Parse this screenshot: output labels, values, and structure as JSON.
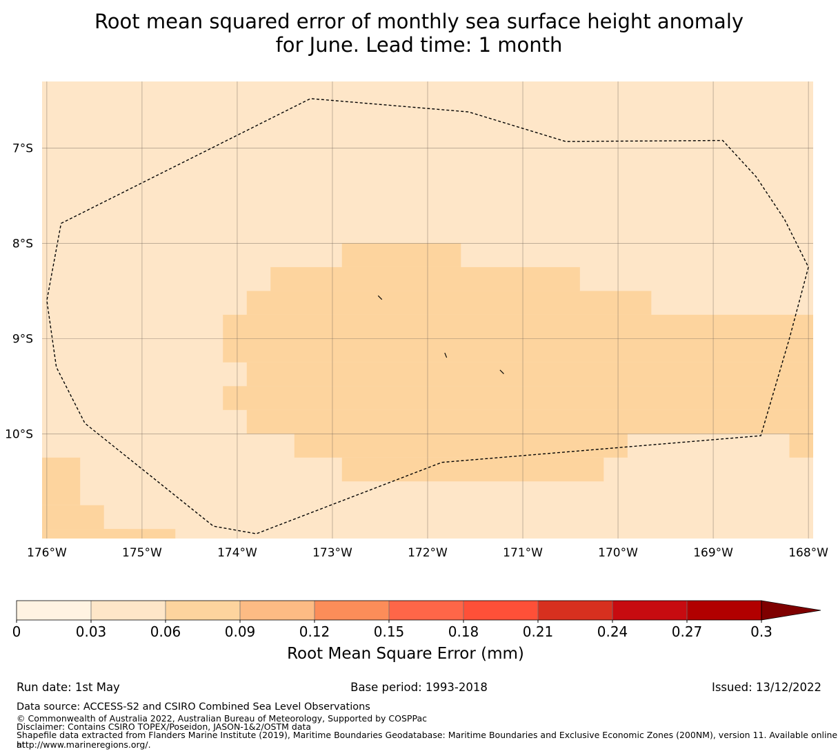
{
  "chart_data": {
    "type": "heatmap",
    "title_line1": "Root mean squared error of monthly sea surface height anomaly",
    "title_line2": "for June. Lead time: 1 month",
    "lon_range": [
      -176.05,
      -167.95
    ],
    "lat_range": [
      -11.1,
      -6.3
    ],
    "x_ticks": [
      -176,
      -175,
      -174,
      -173,
      -172,
      -171,
      -170,
      -169,
      -168
    ],
    "x_tick_labels": [
      "176°W",
      "175°W",
      "174°W",
      "173°W",
      "172°W",
      "171°W",
      "170°W",
      "169°W",
      "168°W"
    ],
    "y_ticks": [
      -7,
      -8,
      -9,
      -10
    ],
    "y_tick_labels": [
      "7°S",
      "8°S",
      "9°S",
      "10°S"
    ],
    "grid": true,
    "background_class_color": "#fee6c8",
    "highlight_class_color": "#fdd49e",
    "highlight_cells": [
      {
        "lon": [
          -172.9,
          -171.65
        ],
        "lat": [
          -8.25,
          -8.0
        ]
      },
      {
        "lon": [
          -173.65,
          -170.4
        ],
        "lat": [
          -8.5,
          -8.25
        ]
      },
      {
        "lon": [
          -173.9,
          -169.65
        ],
        "lat": [
          -8.75,
          -8.5
        ]
      },
      {
        "lon": [
          -174.15,
          -167.95
        ],
        "lat": [
          -9.25,
          -8.75
        ]
      },
      {
        "lon": [
          -173.9,
          -167.95
        ],
        "lat": [
          -9.5,
          -9.25
        ]
      },
      {
        "lon": [
          -174.15,
          -167.95
        ],
        "lat": [
          -9.75,
          -9.5
        ]
      },
      {
        "lon": [
          -173.9,
          -167.95
        ],
        "lat": [
          -10.0,
          -9.75
        ]
      },
      {
        "lon": [
          -173.4,
          -169.9
        ],
        "lat": [
          -10.25,
          -10.0
        ]
      },
      {
        "lon": [
          -168.2,
          -167.95
        ],
        "lat": [
          -10.25,
          -10.0
        ]
      },
      {
        "lon": [
          -172.9,
          -170.15
        ],
        "lat": [
          -10.5,
          -10.25
        ]
      },
      {
        "lon": [
          -176.05,
          -175.65
        ],
        "lat": [
          -10.75,
          -10.25
        ]
      },
      {
        "lon": [
          -176.05,
          -175.4
        ],
        "lat": [
          -11.0,
          -10.75
        ]
      },
      {
        "lon": [
          -176.05,
          -175.15
        ],
        "lat": [
          -11.1,
          -11.0
        ]
      },
      {
        "lon": [
          -176.05,
          -174.65
        ],
        "lat": [
          -11.1,
          -11.0
        ]
      }
    ],
    "eez_boundary": [
      [
        -175.85,
        -7.79
      ],
      [
        -173.23,
        -6.48
      ],
      [
        -171.57,
        -6.62
      ],
      [
        -170.55,
        -6.93
      ],
      [
        -168.9,
        -6.92
      ],
      [
        -168.55,
        -7.3
      ],
      [
        -168.25,
        -7.75
      ],
      [
        -168.0,
        -8.25
      ],
      [
        -168.2,
        -9.0
      ],
      [
        -168.5,
        -10.02
      ],
      [
        -171.85,
        -10.3
      ],
      [
        -173.8,
        -11.05
      ],
      [
        -174.25,
        -10.97
      ],
      [
        -175.6,
        -9.89
      ],
      [
        -175.9,
        -9.3
      ],
      [
        -176.0,
        -8.6
      ],
      [
        -175.85,
        -7.79
      ]
    ],
    "islands": [
      [
        [
          -172.52,
          -8.55
        ],
        [
          -172.48,
          -8.59
        ]
      ],
      [
        [
          -171.82,
          -9.15
        ],
        [
          -171.8,
          -9.2
        ]
      ],
      [
        [
          -171.24,
          -9.33
        ],
        [
          -171.2,
          -9.37
        ]
      ]
    ],
    "colorbar": {
      "ticks": [
        0,
        0.03,
        0.06,
        0.09,
        0.12,
        0.15,
        0.18,
        0.21,
        0.24,
        0.27,
        0.3
      ],
      "tick_labels": [
        "0",
        "0.03",
        "0.06",
        "0.09",
        "0.12",
        "0.15",
        "0.18",
        "0.21",
        "0.24",
        "0.27",
        "0.3"
      ],
      "colors": [
        "#fff3e2",
        "#fee6c8",
        "#fdd49e",
        "#fdbb84",
        "#fc8d59",
        "#fe6648",
        "#fe5038",
        "#d7301f",
        "#c70b10",
        "#b10000"
      ],
      "extend_color": "#7f0000",
      "label": "Root Mean Square Error (mm)"
    }
  },
  "footer": {
    "run_date": "Run date: 1st May",
    "base_period": "Base period: 1993-2018",
    "issued": "Issued: 13/12/2022",
    "data_source": "Data source: ACCESS-S2 and CSIRO Combined Sea Level Observations",
    "copyright": "© Commonwealth of Australia 2022, Australian Bureau of Meteorology, Supported by COSPPac",
    "disclaimer": "Disclaimer: Contains CSIRO TOPEX/Poseidon, JASON-1&2/OSTM data",
    "shapefile_line1": "Shapefile data extracted from Flanders Marine Institute (2019), Maritime Boundaries Geodatabase: Maritime Boundaries and Exclusive Economic Zones (200NM), version 11. Available online at",
    "shapefile_line2": "http://www.marineregions.org/."
  }
}
